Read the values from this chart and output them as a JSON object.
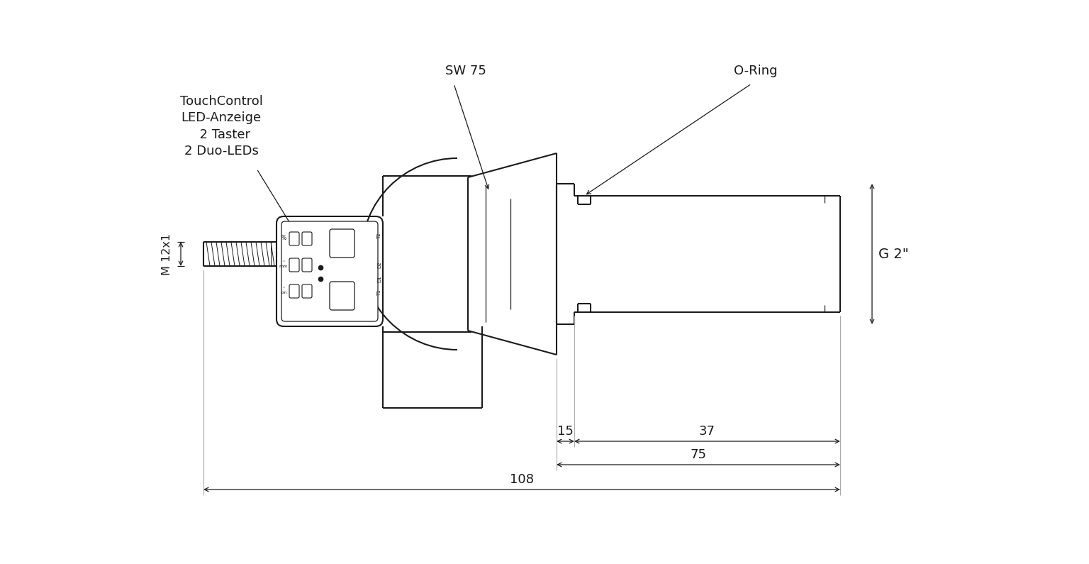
{
  "bg_color": "#ffffff",
  "line_color": "#1a1a1a",
  "lw": 1.5,
  "lw_t": 0.9,
  "annotations": {
    "touch_control": "TouchControl\nLED-Anzeige\n  2 Taster\n2 Duo-LEDs",
    "sw75": "SW 75",
    "o_ring": "O-Ring",
    "m12x1": "M 12x1",
    "g2": "G 2\"",
    "dim_15": "15",
    "dim_37": "37",
    "dim_75": "75",
    "dim_108": "108"
  },
  "figsize": [
    15.36,
    7.95
  ],
  "dpi": 100
}
